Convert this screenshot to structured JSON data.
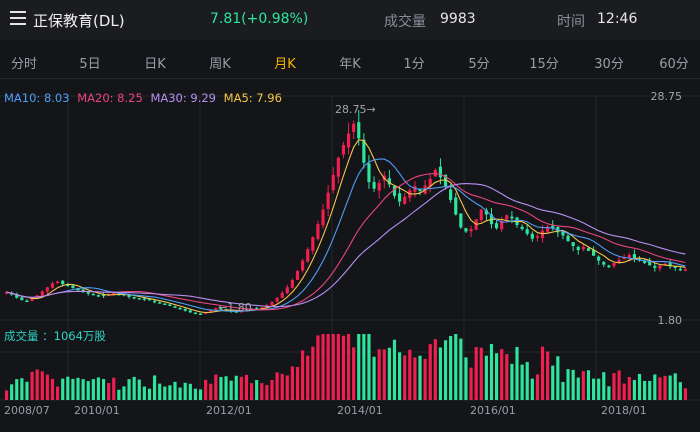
{
  "header": {
    "title": "正保教育(DL)",
    "price": "7.81(+0.98%)",
    "volume_label": "成交量",
    "volume_value": "9983",
    "time_label": "时间",
    "time_value": "12:46"
  },
  "tabs": [
    {
      "label": "分时",
      "active": false
    },
    {
      "label": "5日",
      "active": false
    },
    {
      "label": "日K",
      "active": false
    },
    {
      "label": "周K",
      "active": false
    },
    {
      "label": "月K",
      "active": true
    },
    {
      "label": "年K",
      "active": false
    },
    {
      "label": "1分",
      "active": false
    },
    {
      "label": "5分",
      "active": false
    },
    {
      "label": "15分",
      "active": false
    },
    {
      "label": "30分",
      "active": false
    },
    {
      "label": "60分",
      "active": false
    }
  ],
  "legend": {
    "ma10": "MA10: 8.03",
    "ma20": "MA20: 8.25",
    "ma30": "MA30: 9.29",
    "ma5": "MA5: 7.96"
  },
  "colors": {
    "up": "#f01f4f",
    "down": "#2ee59d",
    "ma10": "#4f9ef8",
    "ma20": "#e8457e",
    "ma30": "#b58ff2",
    "ma5": "#f5c64a",
    "grid": "#24262b",
    "active_tab": "#f7b500"
  },
  "axis": {
    "max_label": "28.75",
    "min_label": "1.80",
    "high_annotation": "28.75→",
    "low_annotation": "←1.80",
    "volume_legend": "成交量 ：1064万股",
    "dates": [
      "2008/07",
      "2010/01",
      "2012/01",
      "2014/01",
      "2016/01",
      "2018/01"
    ]
  },
  "chart_data": {
    "type": "candlestick",
    "period": "monthly",
    "ylim": [
      1.8,
      28.75
    ],
    "high": 28.75,
    "low": 1.8,
    "last_volume": "1064万股",
    "closes": [
      5.0,
      4.7,
      4.3,
      4.0,
      3.9,
      4.2,
      4.6,
      5.1,
      5.6,
      6.1,
      6.3,
      6.0,
      5.8,
      5.5,
      5.3,
      5.0,
      4.8,
      4.7,
      4.6,
      4.5,
      4.7,
      4.9,
      4.8,
      4.6,
      4.4,
      4.3,
      4.2,
      4.1,
      4.0,
      3.8,
      3.6,
      3.5,
      3.3,
      3.1,
      2.9,
      2.7,
      2.5,
      2.4,
      2.3,
      2.5,
      2.8,
      3.0,
      2.9,
      2.7,
      2.6,
      2.5,
      2.7,
      2.9,
      3.0,
      2.9,
      3.1,
      3.4,
      3.8,
      4.3,
      4.9,
      5.6,
      6.5,
      7.6,
      8.9,
      10.3,
      11.8,
      13.4,
      15.2,
      17.3,
      19.5,
      21.6,
      23.2,
      24.6,
      25.8,
      24.0,
      21.0,
      18.6,
      17.8,
      18.5,
      19.4,
      18.3,
      16.9,
      16.2,
      16.8,
      17.6,
      18.1,
      17.5,
      18.2,
      19.0,
      20.1,
      19.2,
      18.0,
      16.4,
      14.6,
      13.0,
      12.5,
      12.8,
      14.0,
      15.2,
      14.6,
      13.4,
      12.9,
      13.8,
      14.5,
      14.1,
      13.3,
      12.8,
      12.2,
      11.6,
      11.9,
      12.6,
      13.1,
      12.9,
      12.4,
      12.0,
      11.3,
      10.7,
      10.2,
      10.6,
      10.1,
      9.5,
      8.9,
      8.4,
      8.2,
      8.6,
      9.0,
      9.3,
      9.6,
      9.2,
      8.9,
      8.6,
      8.3,
      8.0,
      8.3,
      8.5,
      8.2,
      8.0,
      7.8,
      7.81
    ],
    "ma_current": {
      "MA5": 7.96,
      "MA10": 8.03,
      "MA20": 8.25,
      "MA30": 9.29
    }
  }
}
